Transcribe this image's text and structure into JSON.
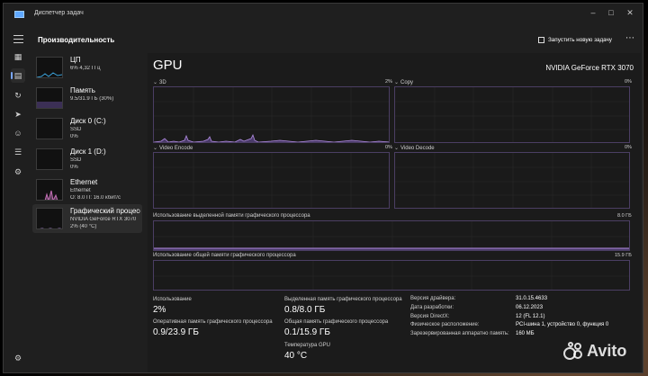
{
  "window": {
    "title": "Диспетчер задач"
  },
  "header": {
    "page_title": "Производительность",
    "run_task_label": "Запустить новую задачу"
  },
  "sidebar": {
    "items": [
      {
        "title": "ЦП",
        "sub1": "6% 4,32 ГГц",
        "sub2": ""
      },
      {
        "title": "Память",
        "sub1": "9.5/31.9 ГБ (30%)",
        "sub2": ""
      },
      {
        "title": "Диск 0 (C:)",
        "sub1": "SSD",
        "sub2": "0%"
      },
      {
        "title": "Диск 1 (D:)",
        "sub1": "SSD",
        "sub2": "0%"
      },
      {
        "title": "Ethernet",
        "sub1": "Ethernet",
        "sub2": "О: 8.0 П: 16.0 кбит/с"
      },
      {
        "title": "Графический процессор",
        "sub1": "NVIDIA GeForce RTX 3070",
        "sub2": "2% (40 °C)"
      }
    ]
  },
  "gpu": {
    "heading": "GPU",
    "model": "NVIDIA GeForce RTX 3070",
    "graphs": {
      "g3d": {
        "label": "3D",
        "pct": "2%"
      },
      "copy": {
        "label": "Copy",
        "pct": "0%"
      },
      "venc": {
        "label": "Video Encode",
        "pct": "0%"
      },
      "vdec": {
        "label": "Video Decode",
        "pct": "0%"
      }
    },
    "dedicated_mem": {
      "label": "Использование выделенной памяти графического процессора",
      "max": "8.0 ГБ"
    },
    "shared_mem": {
      "label": "Использование общей памяти графического процессора",
      "max": "15.9 ГБ"
    },
    "stats": {
      "usage_label": "Использование",
      "usage_value": "2%",
      "gpu_mem_label": "Оперативная память графического процессора",
      "gpu_mem_value": "0.9/23.9 ГБ",
      "ded_label": "Выделенная память графического процессора",
      "ded_value": "0.8/8.0 ГБ",
      "shared_label": "Общая память графического процессора",
      "shared_value": "0.1/15.9 ГБ",
      "temp_label": "Температура GPU",
      "temp_value": "40 °C"
    },
    "info": [
      {
        "key": "Версия драйвера:",
        "value": "31.0.15.4633"
      },
      {
        "key": "Дата разработки:",
        "value": "06.12.2023"
      },
      {
        "key": "Версия DirectX:",
        "value": "12 (FL 12.1)"
      },
      {
        "key": "Физическое расположение:",
        "value": "PCI-шина 1, устройство 0, функция 0"
      },
      {
        "key": "Зарезервированная аппаратно память:",
        "value": "160 МБ"
      }
    ]
  },
  "watermark": {
    "text": "Avito"
  },
  "colors": {
    "accent": "#a07ad6",
    "gpu_line": "#b08be0",
    "background": "#1f1f1f"
  }
}
